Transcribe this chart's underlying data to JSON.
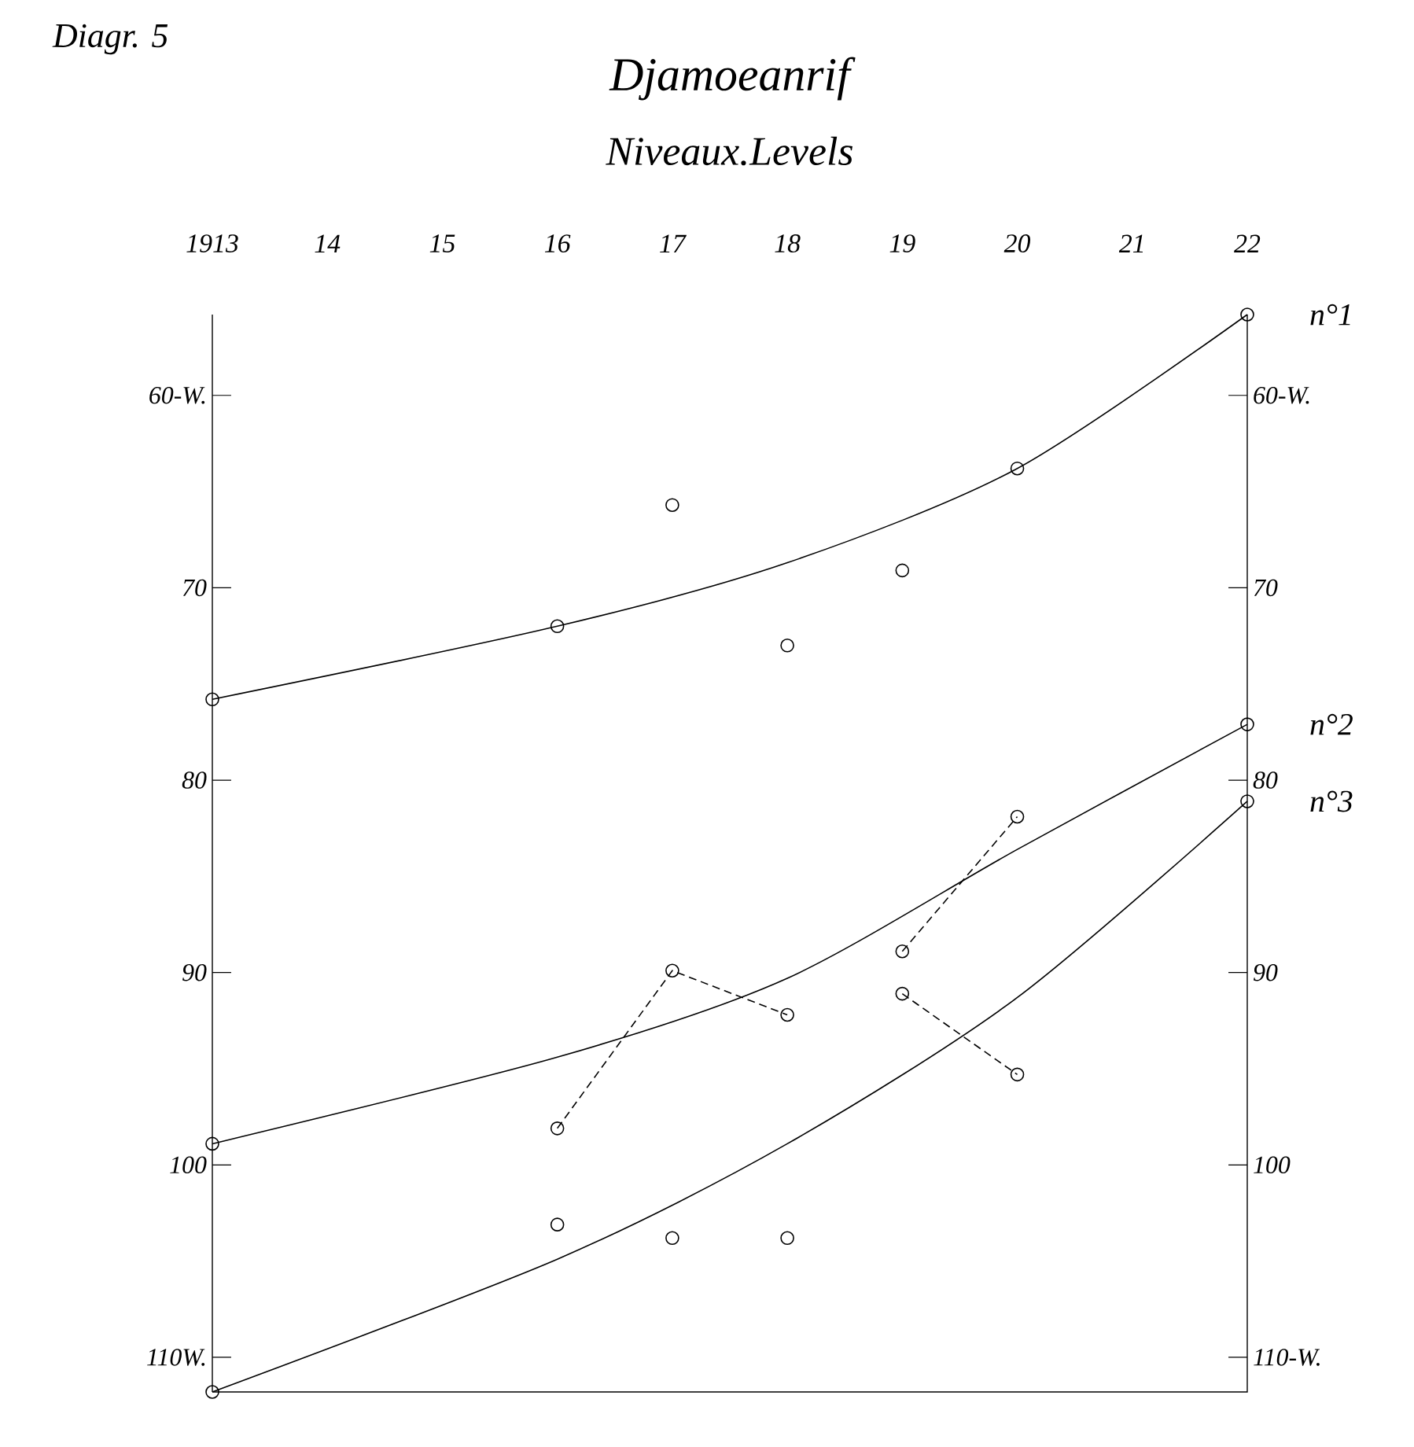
{
  "chart_data": {
    "type": "line",
    "title": "Djamoeanrif",
    "subtitle": "Niveaux.Levels",
    "annotations": [
      "Diagr. 5"
    ],
    "xlim": [
      1913,
      1922
    ],
    "xticks": [
      1913,
      {
        "value": 1914,
        "label": "14"
      },
      {
        "value": 1915,
        "label": "15"
      },
      {
        "value": 1916,
        "label": "16"
      },
      {
        "value": 1917,
        "label": "17"
      },
      {
        "value": 1918,
        "label": "18"
      },
      {
        "value": 1919,
        "label": "19"
      },
      {
        "value": 1920,
        "label": "20"
      },
      {
        "value": 1921,
        "label": "21"
      },
      {
        "value": 1922,
        "label": "22"
      }
    ],
    "ylim": [
      111.8,
      55.8
    ],
    "yticks": [
      {
        "value": 60,
        "label": "60-W."
      },
      70,
      80,
      90,
      100,
      {
        "value": 110,
        "label": "110W."
      }
    ],
    "y2lim": [
      111.8,
      55.8
    ],
    "y2ticks": [
      {
        "value": 60,
        "label": "60-W."
      },
      70,
      80,
      90,
      100,
      {
        "value": 110,
        "label": "110-W."
      }
    ],
    "series": [
      {
        "name": "n°1",
        "color": "#000000",
        "x": [
          1913,
          1916,
          1918,
          1920,
          1922
        ],
        "values": [
          75.8,
          72.0,
          68.7,
          63.8,
          55.8
        ]
      },
      {
        "type": "scatter",
        "marker": "circle",
        "color": "#000000",
        "x": [
          1913,
          1916,
          1917,
          1918,
          1919,
          1920,
          1922
        ],
        "values": [
          75.8,
          72.0,
          65.7,
          73.0,
          69.1,
          63.8,
          55.8
        ]
      },
      {
        "name": "n°2",
        "color": "#000000",
        "x": [
          1913,
          1916,
          1918,
          1920,
          1922
        ],
        "values": [
          98.9,
          94.4,
          90.3,
          83.6,
          77.1
        ]
      },
      {
        "type": "scatter",
        "marker": "circle",
        "color": "#000000",
        "x": [
          1913,
          1922
        ],
        "values": [
          98.9,
          77.1
        ]
      },
      {
        "line_style": "dashed",
        "marker": "circle",
        "color": "#000000",
        "x": [
          1916,
          1917,
          1918
        ],
        "values": [
          98.1,
          89.9,
          92.2
        ]
      },
      {
        "line_style": "dashed",
        "marker": "circle",
        "color": "#000000",
        "x": [
          1919,
          1920
        ],
        "values": [
          88.9,
          81.9
        ]
      },
      {
        "line_style": "dashed",
        "marker": "circle",
        "color": "#000000",
        "x": [
          1919,
          1920
        ],
        "values": [
          91.1,
          95.3
        ]
      },
      {
        "name": "n°3",
        "color": "#000000",
        "x": [
          1913,
          1916,
          1918,
          1920,
          1922
        ],
        "values": [
          111.8,
          104.9,
          98.9,
          91.3,
          81.1
        ]
      },
      {
        "type": "scatter",
        "marker": "circle",
        "color": "#000000",
        "x": [
          1913,
          1916,
          1917,
          1918,
          1922
        ],
        "values": [
          111.8,
          103.1,
          103.8,
          103.8,
          81.1
        ]
      }
    ]
  }
}
